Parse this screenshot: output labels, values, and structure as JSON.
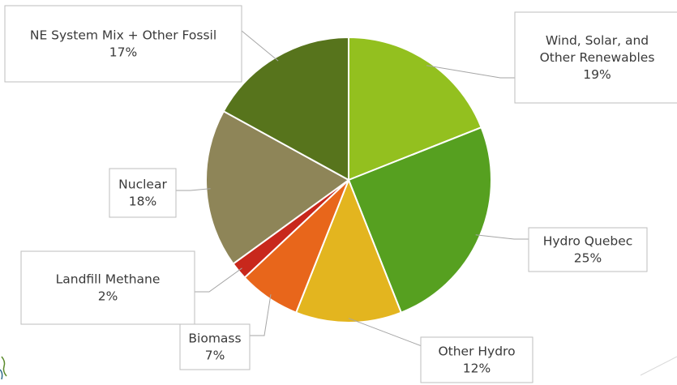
{
  "chart_data": {
    "type": "pie",
    "title": "",
    "start_angle_deg": 0,
    "direction": "clockwise",
    "slices": [
      {
        "label_lines": [
          "Wind, Solar, and",
          "Other Renewables"
        ],
        "value": 19,
        "value_label": "19%",
        "color": "#93c01f"
      },
      {
        "label_lines": [
          "Hydro Quebec"
        ],
        "value": 25,
        "value_label": "25%",
        "color": "#56a020"
      },
      {
        "label_lines": [
          "Other Hydro"
        ],
        "value": 12,
        "value_label": "12%",
        "color": "#e3b51f"
      },
      {
        "label_lines": [
          "Biomass"
        ],
        "value": 7,
        "value_label": "7%",
        "color": "#e8661b"
      },
      {
        "label_lines": [
          "Landfill Methane"
        ],
        "value": 2,
        "value_label": "2%",
        "color": "#c8281c"
      },
      {
        "label_lines": [
          "Nuclear"
        ],
        "value": 18,
        "value_label": "18%",
        "color": "#8e8558"
      },
      {
        "label_lines": [
          "NE System Mix + Other Fossil"
        ],
        "value": 17,
        "value_label": "17%",
        "color": "#57741c"
      }
    ],
    "legend": "none",
    "data_labels": "outside callouts with leader lines"
  }
}
